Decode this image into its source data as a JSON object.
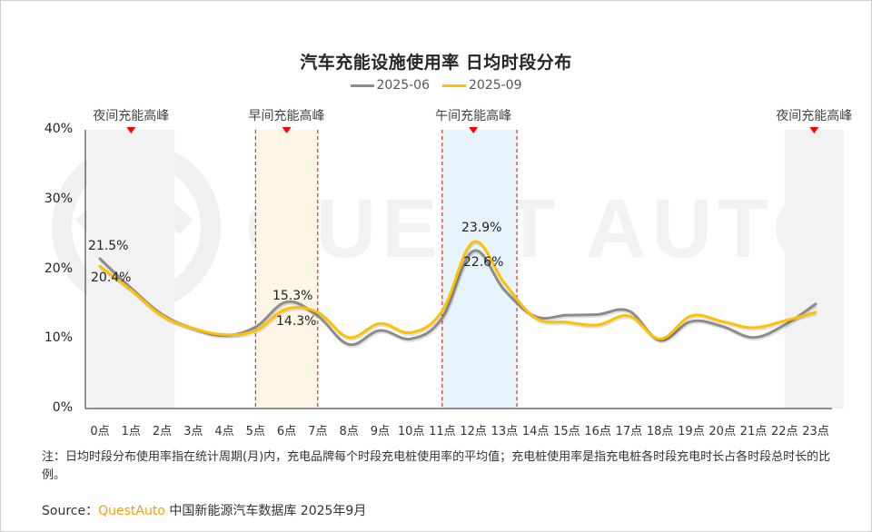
{
  "title": "汽车充能设施使用率 日均时段分布",
  "legend": [
    {
      "label": "2025-06",
      "color": "#8c8c8c"
    },
    {
      "label": "2025-09",
      "color": "#ffc000"
    }
  ],
  "peaks": [
    {
      "label": "夜间充能高峰",
      "hour": 1.0
    },
    {
      "label": "早间充能高峰",
      "hour": 6.0
    },
    {
      "label": "午间充能高峰",
      "hour": 12.0
    },
    {
      "label": "夜间充能高峰",
      "hour": 22.95
    }
  ],
  "data_labels": [
    {
      "text": "21.5%",
      "series": "2025-06",
      "hour": 0
    },
    {
      "text": "20.4%",
      "series": "2025-09",
      "hour": 0
    },
    {
      "text": "15.3%",
      "series": "2025-06",
      "hour": 6
    },
    {
      "text": "14.3%",
      "series": "2025-09",
      "hour": 6
    },
    {
      "text": "23.9%",
      "series": "2025-09",
      "hour": 12
    },
    {
      "text": "22.6%",
      "series": "2025-06",
      "hour": 12
    }
  ],
  "note": "注：日均时段分布使用率指在统计周期(月)内，充电品牌每个时段充电桩使用率的平均值；充电桩使用率是指充电桩各时段充电时长占各时段总时长的比例。",
  "source": {
    "prefix": "Source：",
    "brand": "QuestAuto",
    "rest": " 中国新能源汽车数据库 2025年9月"
  },
  "watermark": "QUEST AUTO",
  "chart_data": {
    "type": "line",
    "title": "汽车充能设施使用率 日均时段分布",
    "xlabel": "",
    "ylabel": "",
    "categories": [
      "0点",
      "1点",
      "2点",
      "3点",
      "4点",
      "5点",
      "6点",
      "7点",
      "8点",
      "9点",
      "10点",
      "11点",
      "12点",
      "13点",
      "14点",
      "15点",
      "16点",
      "17点",
      "18点",
      "19点",
      "20点",
      "21点",
      "22点",
      "23点"
    ],
    "series": [
      {
        "name": "2025-06",
        "color": "#8c8c8c",
        "values": [
          21.5,
          17.3,
          13.5,
          11.5,
          10.5,
          11.7,
          15.3,
          13.3,
          9.2,
          11.2,
          10.0,
          13.0,
          22.6,
          17.0,
          13.2,
          13.4,
          13.5,
          14.0,
          9.8,
          12.5,
          11.8,
          10.2,
          12.0,
          15.0
        ]
      },
      {
        "name": "2025-09",
        "color": "#ffc000",
        "values": [
          20.4,
          17.0,
          13.3,
          11.5,
          10.6,
          11.2,
          14.3,
          13.8,
          10.2,
          12.2,
          10.9,
          14.0,
          23.9,
          18.0,
          13.0,
          12.4,
          12.0,
          13.3,
          10.0,
          13.3,
          12.5,
          11.6,
          12.6,
          13.8
        ]
      }
    ],
    "ylim": [
      0,
      40
    ],
    "yticks": [
      "0%",
      "10%",
      "20%",
      "30%",
      "40%"
    ],
    "grid": false,
    "legend_position": "top",
    "shaded_bands": [
      {
        "label": "夜间充能高峰",
        "from_hour": -0.4,
        "to_hour": 2.4,
        "color": "#f2f2f2"
      },
      {
        "label": "早间充能高峰",
        "from_hour": 5.0,
        "to_hour": 7.0,
        "color": "#fdf5e6",
        "dashed_border": "#e00000"
      },
      {
        "label": "午间充能高峰",
        "from_hour": 11.0,
        "to_hour": 13.4,
        "color": "#e8f4fb",
        "dashed_border": "#e00000"
      },
      {
        "label": "夜间充能高峰",
        "from_hour": 22.0,
        "to_hour": 23.9,
        "color": "#f2f2f2"
      }
    ]
  }
}
